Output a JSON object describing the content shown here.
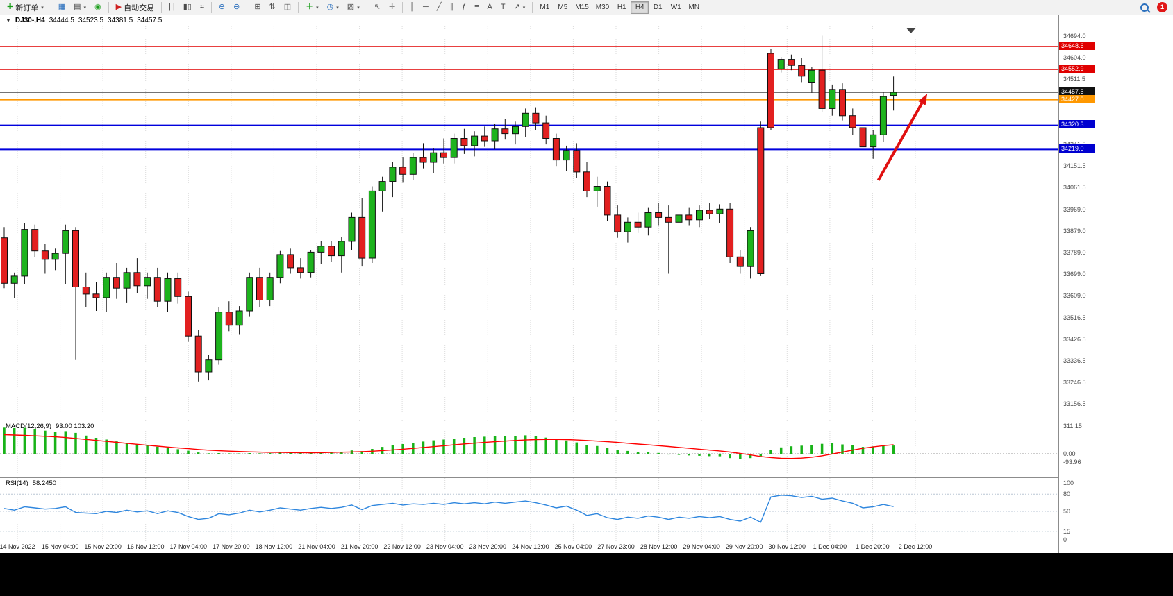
{
  "toolbar": {
    "new_order_label": "新订单",
    "autotrading_label": "自动交易",
    "timeframes": {
      "items": [
        "M1",
        "M5",
        "M15",
        "M30",
        "H1",
        "H4",
        "D1",
        "W1",
        "MN"
      ],
      "active": "H4"
    },
    "notification_count": "1"
  },
  "chart_header": {
    "symbol": "DJ30-,H4",
    "open": "34444.5",
    "high": "34523.5",
    "low": "34381.5",
    "close": "34457.5"
  },
  "chart_data": [
    {
      "type": "candlestick",
      "title": "DJ30-,H4",
      "ylim": [
        33090,
        34733
      ],
      "y_ticks": [
        "34694.0",
        "34604.0",
        "34511.5",
        "34421.5",
        "34331.5",
        "34241.5",
        "34151.5",
        "34061.5",
        "33969.0",
        "33879.0",
        "33789.0",
        "33699.0",
        "33609.0",
        "33516.5",
        "33426.5",
        "33336.5",
        "33246.5",
        "33156.5"
      ],
      "colors": {
        "up": "#1db31d",
        "down": "#e22020",
        "wick": "#111111"
      },
      "candles": [
        [
          33850,
          33895,
          33640,
          33660
        ],
        [
          33660,
          33705,
          33600,
          33690
        ],
        [
          33690,
          33910,
          33655,
          33885
        ],
        [
          33885,
          33905,
          33770,
          33795
        ],
        [
          33795,
          33825,
          33700,
          33760
        ],
        [
          33760,
          33805,
          33715,
          33785
        ],
        [
          33785,
          33905,
          33655,
          33880
        ],
        [
          33880,
          33895,
          33340,
          33645
        ],
        [
          33645,
          33705,
          33560,
          33615
        ],
        [
          33615,
          33665,
          33545,
          33600
        ],
        [
          33600,
          33705,
          33540,
          33685
        ],
        [
          33685,
          33745,
          33595,
          33640
        ],
        [
          33640,
          33725,
          33580,
          33705
        ],
        [
          33705,
          33765,
          33620,
          33650
        ],
        [
          33650,
          33705,
          33595,
          33685
        ],
        [
          33685,
          33725,
          33560,
          33585
        ],
        [
          33585,
          33705,
          33540,
          33680
        ],
        [
          33680,
          33705,
          33575,
          33605
        ],
        [
          33605,
          33625,
          33415,
          33440
        ],
        [
          33440,
          33465,
          33250,
          33290
        ],
        [
          33290,
          33360,
          33255,
          33340
        ],
        [
          33340,
          33560,
          33320,
          33540
        ],
        [
          33540,
          33585,
          33460,
          33485
        ],
        [
          33485,
          33565,
          33445,
          33545
        ],
        [
          33545,
          33705,
          33520,
          33685
        ],
        [
          33685,
          33725,
          33560,
          33590
        ],
        [
          33590,
          33705,
          33565,
          33685
        ],
        [
          33685,
          33795,
          33660,
          33780
        ],
        [
          33780,
          33805,
          33700,
          33725
        ],
        [
          33725,
          33765,
          33680,
          33705
        ],
        [
          33705,
          33800,
          33685,
          33790
        ],
        [
          33790,
          33835,
          33740,
          33815
        ],
        [
          33815,
          33835,
          33750,
          33775
        ],
        [
          33775,
          33855,
          33705,
          33835
        ],
        [
          33835,
          33955,
          33800,
          33935
        ],
        [
          33935,
          34015,
          33730,
          33765
        ],
        [
          33765,
          34065,
          33745,
          34045
        ],
        [
          34045,
          34105,
          33960,
          34085
        ],
        [
          34085,
          34165,
          34020,
          34145
        ],
        [
          34145,
          34185,
          34080,
          34115
        ],
        [
          34115,
          34205,
          34090,
          34185
        ],
        [
          34185,
          34245,
          34140,
          34165
        ],
        [
          34165,
          34225,
          34120,
          34205
        ],
        [
          34205,
          34265,
          34160,
          34185
        ],
        [
          34185,
          34285,
          34160,
          34265
        ],
        [
          34265,
          34305,
          34200,
          34235
        ],
        [
          34235,
          34295,
          34190,
          34275
        ],
        [
          34275,
          34315,
          34230,
          34255
        ],
        [
          34255,
          34325,
          34220,
          34305
        ],
        [
          34305,
          34345,
          34260,
          34285
        ],
        [
          34285,
          34335,
          34240,
          34315
        ],
        [
          34315,
          34390,
          34270,
          34370
        ],
        [
          34370,
          34395,
          34300,
          34330
        ],
        [
          34330,
          34360,
          34240,
          34265
        ],
        [
          34265,
          34285,
          34150,
          34175
        ],
        [
          34175,
          34235,
          34130,
          34215
        ],
        [
          34215,
          34245,
          34100,
          34125
        ],
        [
          34125,
          34165,
          34020,
          34045
        ],
        [
          34045,
          34105,
          33980,
          34065
        ],
        [
          34065,
          34085,
          33920,
          33945
        ],
        [
          33945,
          33985,
          33850,
          33875
        ],
        [
          33875,
          33935,
          33830,
          33915
        ],
        [
          33915,
          33955,
          33870,
          33895
        ],
        [
          33895,
          33975,
          33860,
          33955
        ],
        [
          33955,
          33995,
          33900,
          33935
        ],
        [
          33935,
          33985,
          33700,
          33915
        ],
        [
          33915,
          33965,
          33865,
          33945
        ],
        [
          33945,
          33975,
          33900,
          33925
        ],
        [
          33925,
          33985,
          33895,
          33965
        ],
        [
          33965,
          33995,
          33930,
          33950
        ],
        [
          33950,
          33990,
          33910,
          33970
        ],
        [
          33970,
          33995,
          33745,
          33770
        ],
        [
          33770,
          33800,
          33700,
          33730
        ],
        [
          33730,
          33895,
          33680,
          33880
        ],
        [
          34310,
          34335,
          33690,
          33700
        ],
        [
          34620,
          34640,
          34300,
          34310
        ],
        [
          34555,
          34605,
          34540,
          34595
        ],
        [
          34595,
          34615,
          34550,
          34570
        ],
        [
          34570,
          34600,
          34500,
          34525
        ],
        [
          34500,
          34565,
          34455,
          34550
        ],
        [
          34550,
          34694,
          34375,
          34390
        ],
        [
          34390,
          34490,
          34360,
          34470
        ],
        [
          34470,
          34495,
          34340,
          34360
        ],
        [
          34360,
          34390,
          34280,
          34310
        ],
        [
          34310,
          34340,
          33940,
          34230
        ],
        [
          34230,
          34300,
          34180,
          34280
        ],
        [
          34280,
          34460,
          34250,
          34440
        ],
        [
          34444.5,
          34523.5,
          34381.5,
          34457.5
        ]
      ],
      "hlines": [
        {
          "price": 34648.6,
          "color": "#e00000",
          "width": 1.2
        },
        {
          "price": 34552.9,
          "color": "#e00000",
          "width": 1.2
        },
        {
          "price": 34457.5,
          "color": "#222222",
          "width": 1
        },
        {
          "price": 34427.0,
          "color": "#ff9800",
          "width": 2
        },
        {
          "price": 34320.3,
          "color": "#0000dd",
          "width": 1.5
        },
        {
          "price": 34219.0,
          "color": "#0000dd",
          "width": 2
        }
      ],
      "badges": [
        {
          "label": "34648.6",
          "price": 34648.6,
          "bg": "#e00000"
        },
        {
          "label": "34552.9",
          "price": 34552.9,
          "bg": "#e00000"
        },
        {
          "label": "34457.5",
          "price": 34457.5,
          "bg": "#111111"
        },
        {
          "label": "34427.0",
          "price": 34427.0,
          "bg": "#ff9800"
        },
        {
          "label": "34320.3",
          "price": 34320.3,
          "bg": "#0000d0"
        },
        {
          "label": "34219.0",
          "price": 34219.0,
          "bg": "#0000d0"
        }
      ],
      "arrow": {
        "from": {
          "index": 85.5,
          "price": 34090
        },
        "to": {
          "index": 90.3,
          "price": 34452
        },
        "color": "#e01010"
      },
      "shift_marker": {
        "index": 88.7
      }
    },
    {
      "type": "macd",
      "label": "MACD(12,26,9)",
      "values": "93.00 103.20",
      "ylim": [
        -265,
        375
      ],
      "y_ticks": [
        "311.15",
        "0.00",
        "-93.96"
      ],
      "colors": {
        "histogram": "#18b318",
        "signal": "#ff0000"
      },
      "histogram": [
        295,
        290,
        292,
        275,
        260,
        250,
        255,
        235,
        205,
        180,
        160,
        140,
        125,
        108,
        95,
        80,
        68,
        52,
        35,
        15,
        6,
        8,
        5,
        4,
        8,
        6,
        8,
        12,
        10,
        8,
        12,
        16,
        14,
        22,
        38,
        30,
        55,
        78,
        98,
        110,
        125,
        138,
        152,
        160,
        172,
        180,
        188,
        192,
        198,
        196,
        202,
        208,
        198,
        182,
        162,
        150,
        128,
        102,
        88,
        65,
        42,
        32,
        22,
        18,
        10,
        -8,
        -12,
        -18,
        -22,
        -26,
        -28,
        -48,
        -62,
        -48,
        -25,
        45,
        72,
        85,
        92,
        96,
        112,
        118,
        106,
        96,
        78,
        84,
        96,
        93
      ],
      "signal": [
        215,
        211,
        207,
        202,
        197,
        191,
        183,
        173,
        162,
        151,
        140,
        129,
        118,
        107,
        96,
        86,
        76,
        67,
        58,
        49,
        41,
        35,
        30,
        26,
        22,
        19,
        17,
        15,
        14,
        13,
        12,
        13,
        15,
        18,
        21,
        24,
        29,
        36,
        44,
        52,
        61,
        71,
        81,
        91,
        101,
        111,
        120,
        128,
        136,
        143,
        150,
        156,
        160,
        162,
        162,
        160,
        156,
        150,
        143,
        136,
        128,
        119,
        110,
        101,
        92,
        82,
        72,
        62,
        52,
        42,
        32,
        20,
        5,
        -12,
        -30,
        -42,
        -50,
        -52,
        -48,
        -38,
        -22,
        -2,
        20,
        42,
        62,
        78,
        92,
        103
      ]
    },
    {
      "type": "rsi",
      "label": "RSI(14)",
      "value": "58.2450",
      "ylim": [
        -2,
        108
      ],
      "y_ticks": [
        "100",
        "80",
        "50",
        "15",
        "0"
      ],
      "levels": [
        80,
        50,
        15
      ],
      "colors": {
        "line": "#2e86de"
      },
      "line": [
        55,
        52,
        58,
        56,
        54,
        55,
        58,
        48,
        47,
        46,
        50,
        48,
        52,
        49,
        51,
        46,
        51,
        48,
        41,
        36,
        38,
        46,
        44,
        47,
        52,
        49,
        52,
        56,
        54,
        52,
        55,
        57,
        55,
        57,
        61,
        53,
        60,
        62,
        64,
        61,
        63,
        62,
        64,
        62,
        65,
        63,
        65,
        63,
        66,
        64,
        66,
        68,
        65,
        61,
        56,
        59,
        52,
        43,
        46,
        39,
        36,
        40,
        38,
        42,
        40,
        36,
        40,
        38,
        41,
        39,
        41,
        36,
        33,
        40,
        31,
        75,
        78,
        77,
        74,
        76,
        71,
        73,
        68,
        64,
        56,
        58,
        62,
        58.245
      ]
    },
    {
      "type": "time-axis",
      "labels": [
        "14 Nov 2022",
        "15 Nov 04:00",
        "15 Nov 20:00",
        "16 Nov 12:00",
        "17 Nov 04:00",
        "17 Nov 20:00",
        "18 Nov 12:00",
        "21 Nov 04:00",
        "21 Nov 20:00",
        "22 Nov 12:00",
        "23 Nov 04:00",
        "23 Nov 20:00",
        "24 Nov 12:00",
        "25 Nov 04:00",
        "27 Nov 23:00",
        "28 Nov 12:00",
        "29 Nov 04:00",
        "29 Nov 20:00",
        "30 Nov 12:00",
        "1 Dec 04:00",
        "1 Dec 20:00",
        "2 Dec 12:00"
      ]
    }
  ]
}
